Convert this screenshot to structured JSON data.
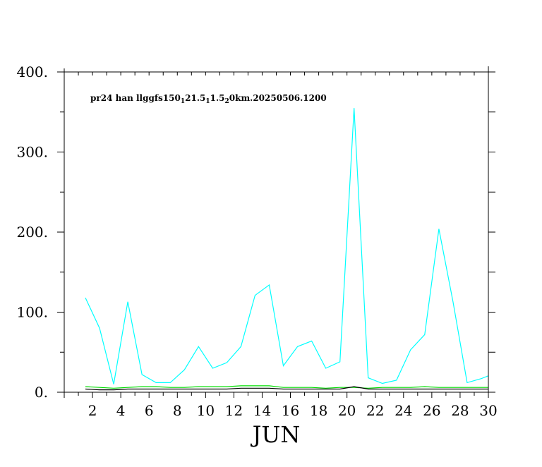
{
  "chart_data": {
    "type": "line",
    "annotation_parts": [
      {
        "text": "pr24 han llggfs150"
      },
      {
        "text": "1",
        "sub": true
      },
      {
        "text": "21.5"
      },
      {
        "text": "1",
        "sub": true
      },
      {
        "text": "1.5"
      },
      {
        "text": "2",
        "sub": true
      },
      {
        "text": "0km.20250506.1200"
      }
    ],
    "xlabel": "JUN",
    "xlim": [
      0,
      30
    ],
    "ylim": [
      0,
      400
    ],
    "x_ticks": [
      2,
      4,
      6,
      8,
      10,
      12,
      14,
      16,
      18,
      20,
      22,
      24,
      26,
      28,
      30
    ],
    "y_ticks": [
      0,
      100,
      200,
      300,
      400
    ],
    "y_tick_labels": [
      "0.",
      "100.",
      "200.",
      "300.",
      "400."
    ],
    "x": [
      1.5,
      2.5,
      3.5,
      4.5,
      5.5,
      6.5,
      7.5,
      8.5,
      9.5,
      10.5,
      11.5,
      12.5,
      13.5,
      14.5,
      15.5,
      16.5,
      17.5,
      18.5,
      19.5,
      20.5,
      21.5,
      22.5,
      23.5,
      24.5,
      25.5,
      26.5,
      27.5,
      28.5,
      29.5,
      30.5
    ],
    "series": [
      {
        "color": "#00ffff",
        "values": [
          118,
          80,
          10,
          113,
          22,
          12,
          12,
          28,
          57,
          30,
          37,
          57,
          121,
          134,
          33,
          57,
          64,
          30,
          38,
          355,
          18,
          11,
          15,
          53,
          72,
          204,
          113,
          12,
          17,
          24
        ]
      },
      {
        "color": "#00dd00",
        "values": [
          7,
          6,
          5,
          6,
          7,
          7,
          6,
          6,
          7,
          7,
          7,
          8,
          8,
          8,
          6,
          6,
          6,
          5,
          6,
          6,
          5,
          6,
          6,
          6,
          7,
          6,
          6,
          6,
          6,
          6
        ]
      },
      {
        "color": "#000000",
        "values": [
          4,
          3,
          3,
          4,
          4,
          4,
          4,
          4,
          4,
          4,
          4,
          5,
          5,
          5,
          4,
          4,
          4,
          4,
          4,
          7,
          4,
          4,
          4,
          4,
          4,
          4,
          4,
          4,
          4,
          4
        ]
      }
    ]
  }
}
